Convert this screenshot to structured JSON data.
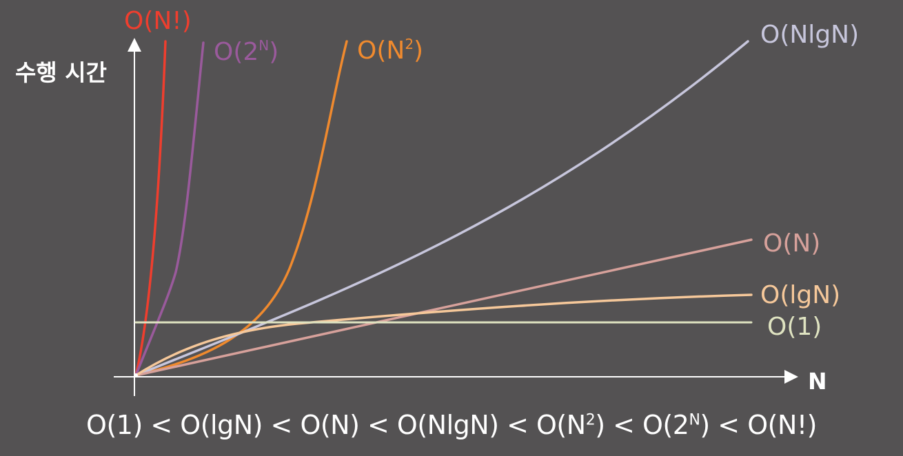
{
  "chart_data": {
    "type": "line",
    "title": "",
    "xlabel": "N",
    "ylabel": "수행 시간",
    "grid": false,
    "series": [
      {
        "name": "O(N!)",
        "label_main": "O(N!)",
        "label_sup": "",
        "label_tail": "",
        "color": "#ef3e2e",
        "shape": "factorial"
      },
      {
        "name": "O(2^N)",
        "label_main": "O(2",
        "label_sup": "N",
        "label_tail": ")",
        "color": "#9a5a9c",
        "shape": "exponential"
      },
      {
        "name": "O(N^2)",
        "label_main": "O(N",
        "label_sup": "2",
        "label_tail": ")",
        "color": "#f08a2e",
        "shape": "quadratic"
      },
      {
        "name": "O(NlgN)",
        "label_main": "O(NlgN)",
        "label_sup": "",
        "label_tail": "",
        "color": "#c7c6dc",
        "shape": "nlogn"
      },
      {
        "name": "O(N)",
        "label_main": "O(N)",
        "label_sup": "",
        "label_tail": "",
        "color": "#d7a19b",
        "shape": "linear"
      },
      {
        "name": "O(lgN)",
        "label_main": "O(lgN)",
        "label_sup": "",
        "label_tail": "",
        "color": "#f6c89a",
        "shape": "log"
      },
      {
        "name": "O(1)",
        "label_main": "O(1)",
        "label_sup": "",
        "label_tail": "",
        "color": "#dfe3c1",
        "shape": "constant"
      }
    ]
  },
  "formula": {
    "p1": "O(1) < O(lgN) < O(N) < O(NlgN) < O(N",
    "s1": "2",
    "p2": ") < O(2",
    "s2": "N",
    "p3": ") < O(N!)"
  }
}
